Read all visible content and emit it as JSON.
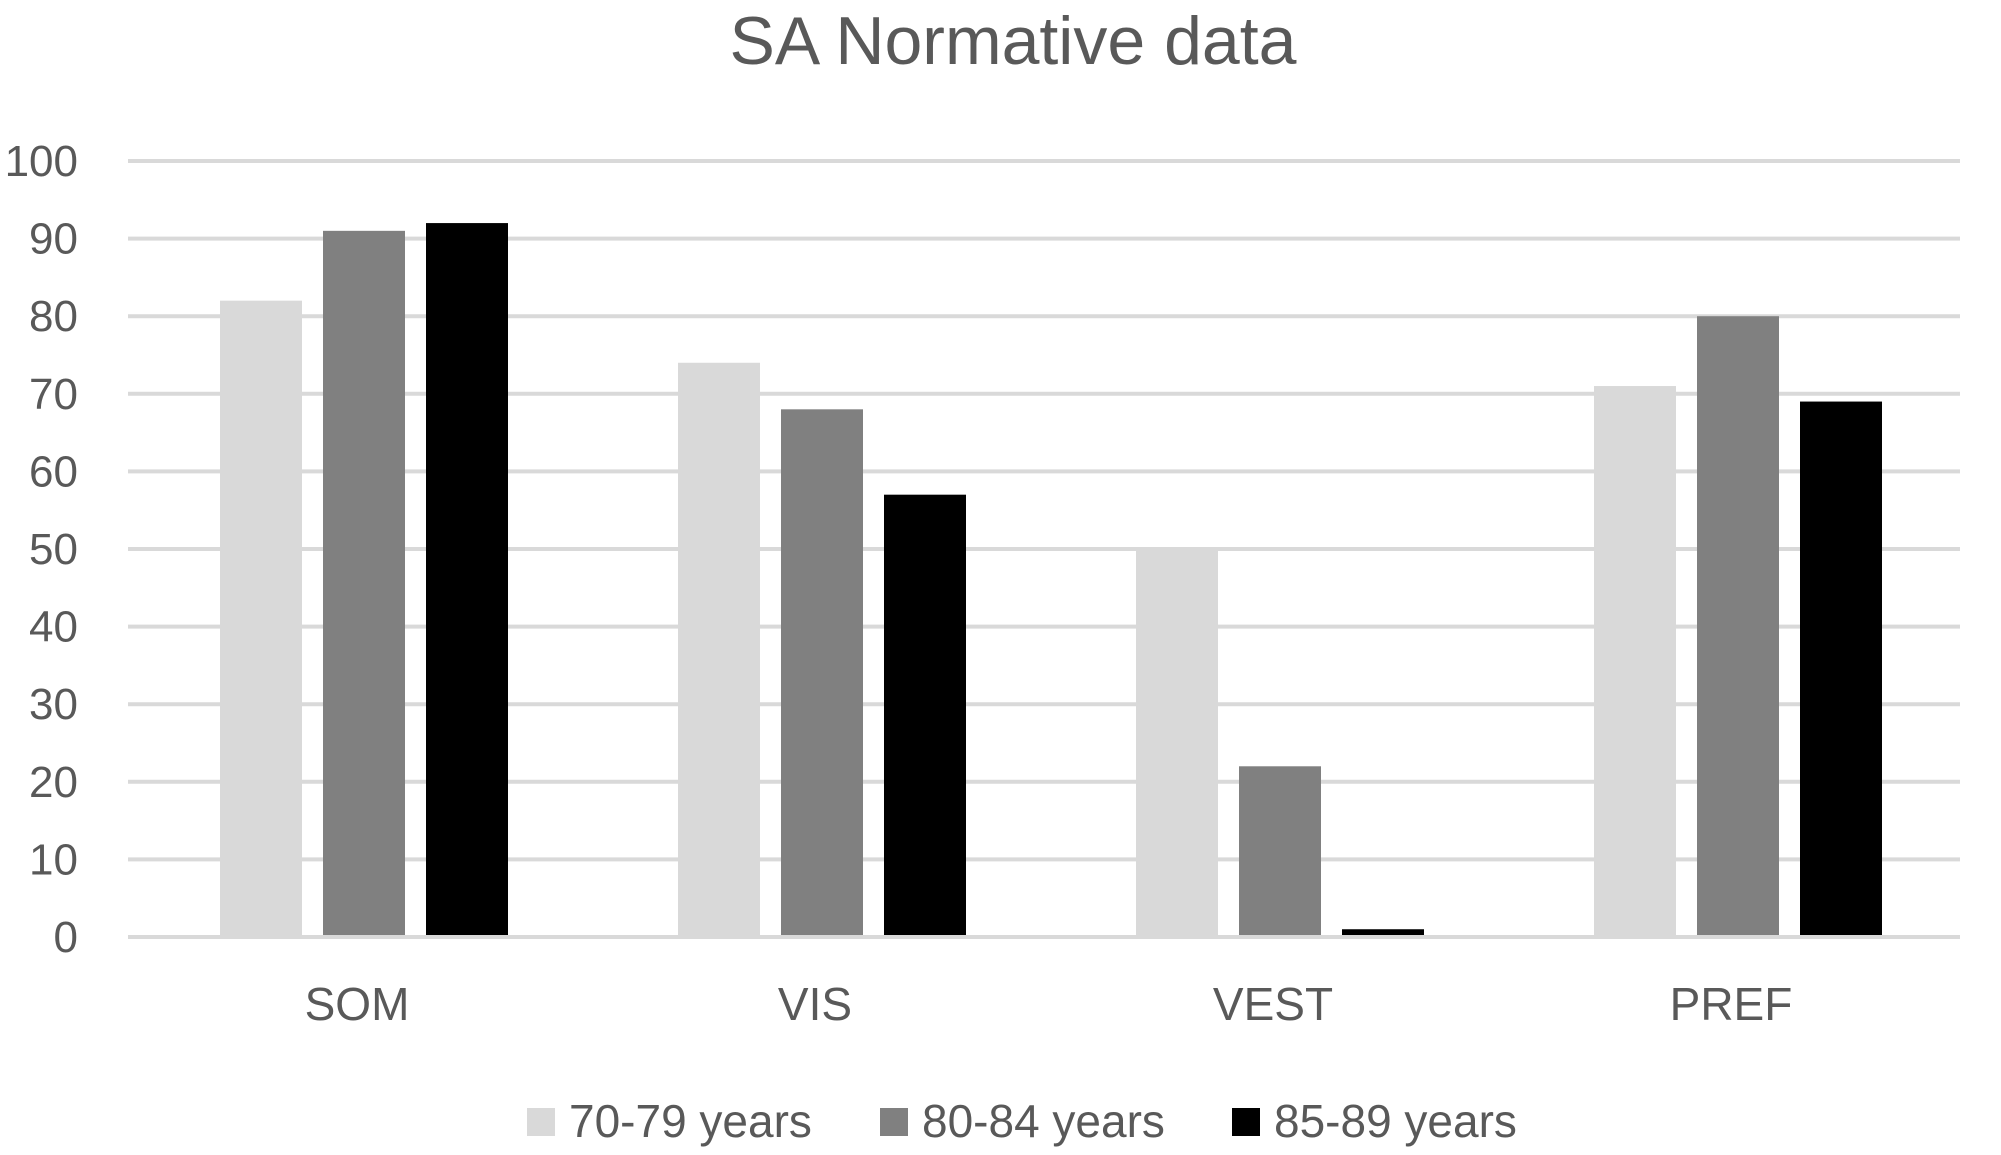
{
  "chart_data": {
    "type": "bar",
    "title": "SA Normative data",
    "xlabel": "",
    "ylabel": "",
    "categories": [
      "SOM",
      "VIS",
      "VEST",
      "PREF"
    ],
    "series": [
      {
        "name": "70-79 years",
        "values": [
          82,
          74,
          50,
          71
        ],
        "color": "#d9d9d9"
      },
      {
        "name": "80-84 years",
        "values": [
          91,
          68,
          22,
          80
        ],
        "color": "#808080"
      },
      {
        "name": "85-89 years",
        "values": [
          92,
          57,
          1,
          69
        ],
        "color": "#000000"
      }
    ],
    "ylim": [
      0,
      100
    ],
    "yticks": [
      "0",
      "10",
      "20",
      "30",
      "40",
      "50",
      "60",
      "70",
      "80",
      "90",
      "100"
    ],
    "grid": true,
    "legend_position": "bottom"
  }
}
